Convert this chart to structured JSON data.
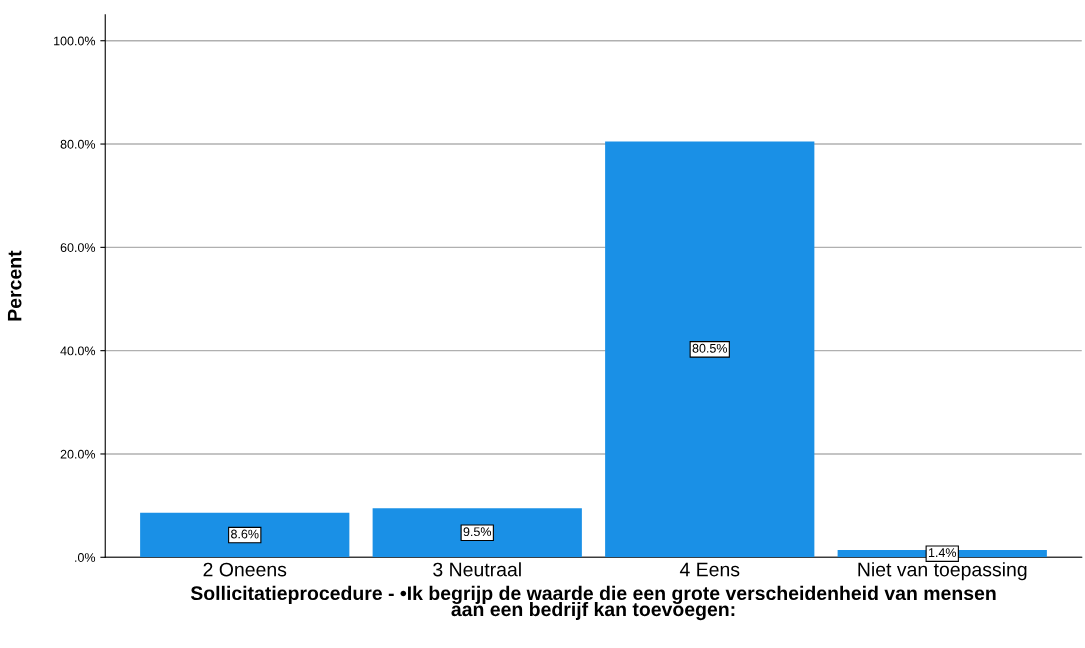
{
  "chart_data": {
    "type": "bar",
    "xlabel": "Sollicitatieprocedure - •Ik begrijp de waarde die een grote verscheidenheid van mensen\naan een bedrijf kan toevoegen:",
    "ylabel": "Percent",
    "categories": [
      "2 Oneens",
      "3 Neutraal",
      "4 Eens",
      "Niet van toepassing"
    ],
    "values": [
      8.6,
      9.5,
      80.5,
      1.4
    ],
    "value_labels": [
      "8.6%",
      "9.5%",
      "80.5%",
      "1.4%"
    ],
    "color": "#1a90e6",
    "ylim": [
      0,
      105
    ],
    "yticks": [
      {
        "value": 0,
        "label": ".0%"
      },
      {
        "value": 20,
        "label": "20.0%"
      },
      {
        "value": 40,
        "label": "40.0%"
      },
      {
        "value": 60,
        "label": "60.0%"
      },
      {
        "value": 80,
        "label": "80.0%"
      },
      {
        "value": 100,
        "label": "100.0%"
      }
    ],
    "grid": "y"
  }
}
